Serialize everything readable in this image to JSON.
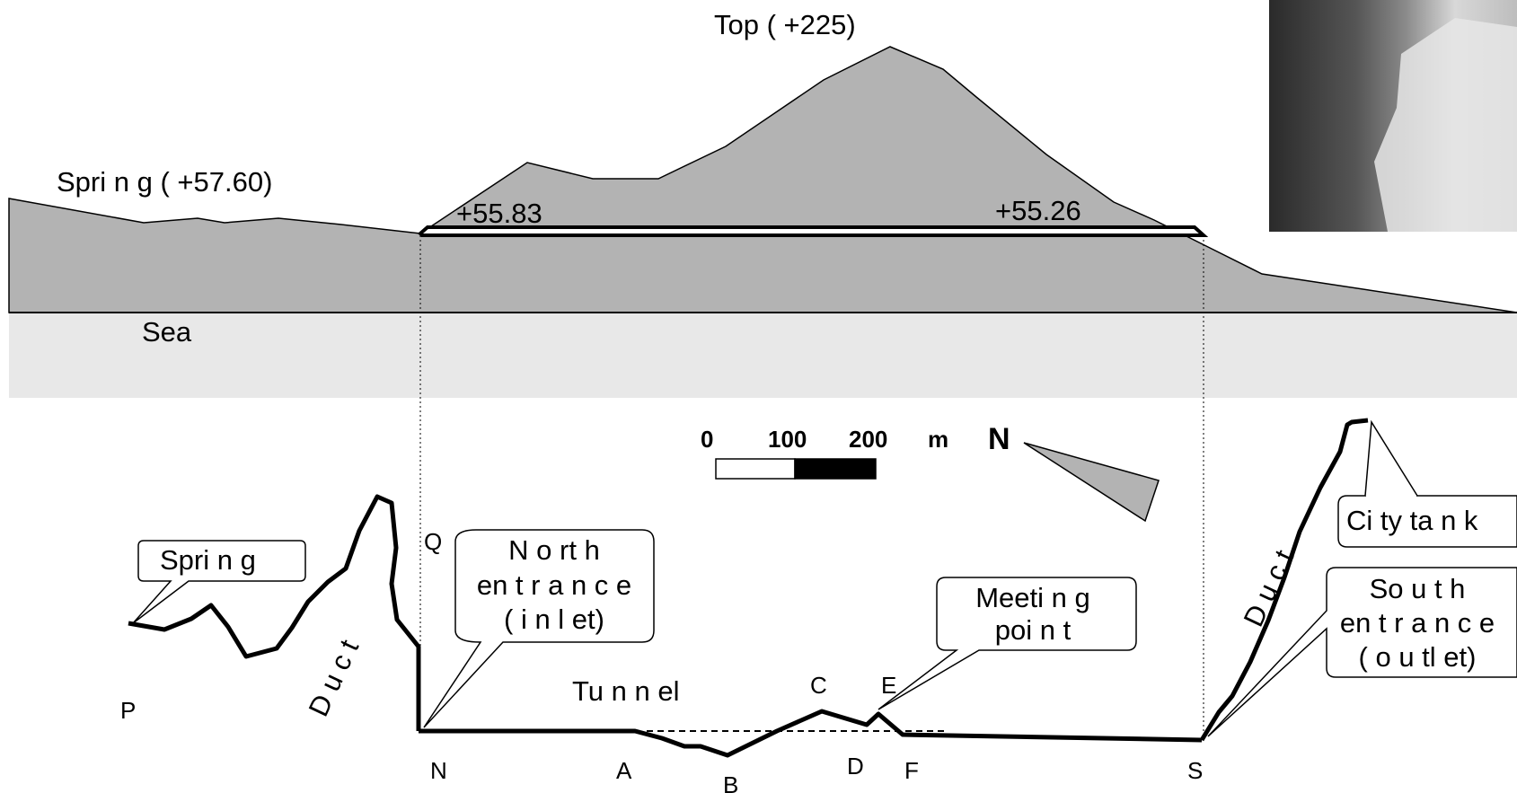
{
  "profile": {
    "top_label": "Top ( +225)",
    "spring_elev_label": "Spri n g ( +57.60)",
    "north_elev": "+55.83",
    "south_elev": "+55.26",
    "sea_label": "Sea"
  },
  "scale_bar": {
    "tick_0": "0",
    "tick_100": "100",
    "tick_200": "200",
    "unit": "m"
  },
  "north_arrow": {
    "label": "N"
  },
  "plan": {
    "tunnel_label": "Tu n n el",
    "duct_left": "D u c t",
    "duct_right": "D u c t",
    "callouts": {
      "spring": "Spri n g",
      "north_entrance": [
        "N o rt h",
        "en t r a n c e",
        "( i n l et)"
      ],
      "meeting_point": [
        "Meeti n g",
        "poi n t"
      ],
      "city_tank": "Ci ty ta n k",
      "south_entrance": [
        "So u t h",
        "en t r a n c e",
        "( o u tl et)"
      ]
    },
    "points": {
      "P": "P",
      "Q": "Q",
      "N": "N",
      "A": "A",
      "B": "B",
      "C": "C",
      "D": "D",
      "E": "E",
      "F": "F",
      "S": "S"
    }
  },
  "colors": {
    "terrain": "#b3b3b3",
    "sea": "#e8e8e8",
    "scale_fill": "#000000",
    "north_arrow_fill": "#b3b3b3"
  }
}
